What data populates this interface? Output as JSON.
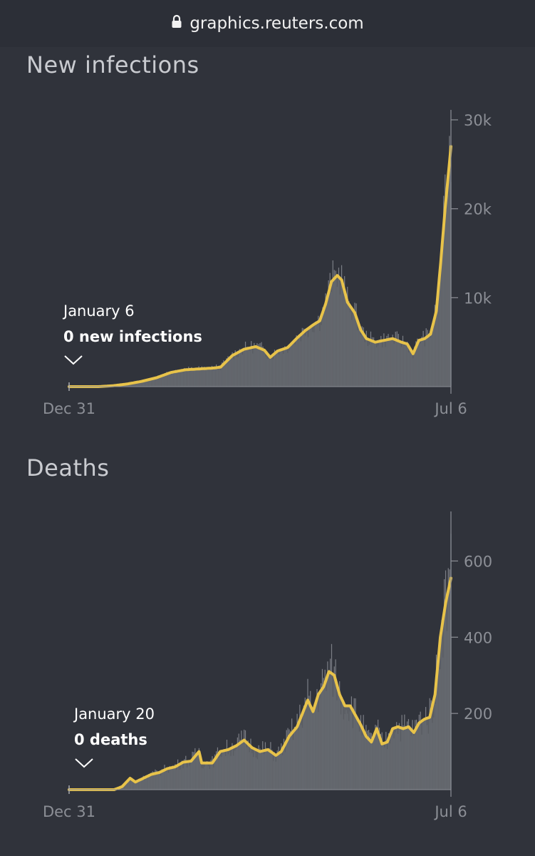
{
  "browser": {
    "url": "graphics.reuters.com",
    "lock_icon": "lock-icon"
  },
  "colors": {
    "background": "#30333b",
    "line": "#e8c34a",
    "area": "#64676d",
    "bars": "#7b7e85",
    "text": "#c9cbd0"
  },
  "chart_data": [
    {
      "type": "area",
      "title": "New infections",
      "x_range": [
        "Dec 31",
        "Jul 6"
      ],
      "x_ticks": [
        "Dec 31",
        "Jul 6"
      ],
      "ylim": [
        0,
        30000
      ],
      "y_ticks": [
        {
          "value": 10000,
          "label": "10k"
        },
        {
          "value": 20000,
          "label": "20k"
        },
        {
          "value": 30000,
          "label": "30k"
        }
      ],
      "annotation": {
        "date": "January 6",
        "value_label": "0 new infections"
      },
      "series": [
        {
          "values": [
            0,
            0,
            0,
            0,
            0,
            0,
            0,
            0,
            0,
            0,
            0,
            0,
            0,
            0,
            0,
            0,
            0,
            0,
            0,
            0,
            0,
            0,
            0,
            0,
            0,
            0,
            0,
            0,
            0,
            0,
            0,
            0,
            0,
            0,
            0,
            0,
            0,
            0,
            0,
            0,
            0,
            0,
            0,
            0,
            0,
            0,
            0,
            0,
            0,
            0,
            0,
            0,
            0,
            0,
            0,
            0,
            0,
            0,
            0,
            0,
            0,
            0,
            0,
            0,
            0,
            0,
            0,
            0,
            0,
            0,
            0,
            0,
            0,
            0,
            0,
            0,
            0,
            0,
            0,
            0,
            0,
            0,
            0,
            0,
            0,
            0,
            0,
            0,
            0,
            0,
            0,
            0,
            0,
            0,
            0,
            0,
            0,
            0,
            0,
            0,
            0,
            0,
            0,
            0,
            0,
            0,
            0,
            0,
            0,
            0,
            0,
            0,
            0,
            0,
            0,
            0,
            0,
            0,
            0,
            0,
            0,
            0,
            0,
            0,
            0,
            0,
            0,
            0,
            0,
            0,
            0,
            0,
            0,
            0,
            0,
            0,
            0,
            0,
            0,
            0,
            0,
            0,
            0,
            0,
            0,
            0,
            0,
            0,
            0,
            0,
            0,
            0,
            0,
            0,
            0,
            0,
            0,
            0,
            0,
            0,
            0,
            0,
            0,
            0,
            0,
            0,
            0,
            0,
            0,
            0,
            0,
            0,
            0,
            0,
            0,
            0,
            0,
            0,
            0,
            0,
            0,
            0,
            0,
            0,
            0,
            0,
            0,
            0,
            0
          ],
          "keypoints": [
            [
              0,
              0
            ],
            [
              20,
              0
            ],
            [
              30,
              100
            ],
            [
              40,
              300
            ],
            [
              50,
              600
            ],
            [
              60,
              1000
            ],
            [
              70,
              1600
            ],
            [
              80,
              1900
            ],
            [
              90,
              2000
            ],
            [
              100,
              2100
            ],
            [
              104,
              2200
            ],
            [
              112,
              3500
            ],
            [
              120,
              4200
            ],
            [
              128,
              4500
            ],
            [
              134,
              4100
            ],
            [
              138,
              3300
            ],
            [
              143,
              4000
            ],
            [
              150,
              4400
            ],
            [
              156,
              5400
            ],
            [
              162,
              6300
            ],
            [
              168,
              7000
            ],
            [
              172,
              7400
            ],
            [
              176,
              9300
            ],
            [
              180,
              11800
            ],
            [
              184,
              12500
            ],
            [
              187,
              12000
            ],
            [
              191,
              9500
            ],
            [
              196,
              8300
            ],
            [
              200,
              6400
            ],
            [
              204,
              5400
            ],
            [
              210,
              5000
            ],
            [
              216,
              5200
            ],
            [
              222,
              5400
            ],
            [
              228,
              5000
            ],
            [
              232,
              4800
            ],
            [
              236,
              3700
            ],
            [
              240,
              5200
            ],
            [
              244,
              5400
            ],
            [
              248,
              5900
            ],
            [
              252,
              8500
            ],
            [
              255,
              14000
            ],
            [
              258,
              20000
            ],
            [
              262,
              27000
            ]
          ],
          "noise": 0.18
        }
      ]
    },
    {
      "type": "area",
      "title": "Deaths",
      "x_range": [
        "Dec 31",
        "Jul 6"
      ],
      "x_ticks": [
        "Dec 31",
        "Jul 6"
      ],
      "ylim": [
        0,
        700
      ],
      "y_ticks": [
        {
          "value": 200,
          "label": "200"
        },
        {
          "value": 400,
          "label": "400"
        },
        {
          "value": 600,
          "label": "600"
        }
      ],
      "annotation": {
        "date": "January 20",
        "value_label": "0 deaths"
      },
      "series": [
        {
          "keypoints": [
            [
              0,
              0
            ],
            [
              34,
              0
            ],
            [
              40,
              8
            ],
            [
              46,
              30
            ],
            [
              50,
              20
            ],
            [
              56,
              30
            ],
            [
              62,
              40
            ],
            [
              68,
              45
            ],
            [
              74,
              55
            ],
            [
              80,
              60
            ],
            [
              86,
              72
            ],
            [
              92,
              75
            ],
            [
              98,
              100
            ],
            [
              100,
              70
            ],
            [
              108,
              70
            ],
            [
              114,
              100
            ],
            [
              120,
              105
            ],
            [
              126,
              115
            ],
            [
              132,
              130
            ],
            [
              138,
              110
            ],
            [
              144,
              100
            ],
            [
              150,
              105
            ],
            [
              156,
              90
            ],
            [
              160,
              100
            ],
            [
              166,
              140
            ],
            [
              172,
              165
            ],
            [
              176,
              200
            ],
            [
              180,
              235
            ],
            [
              184,
              205
            ],
            [
              188,
              250
            ],
            [
              192,
              270
            ],
            [
              196,
              310
            ],
            [
              200,
              300
            ],
            [
              204,
              250
            ],
            [
              208,
              220
            ],
            [
              212,
              220
            ],
            [
              216,
              195
            ],
            [
              220,
              170
            ],
            [
              224,
              140
            ],
            [
              228,
              125
            ],
            [
              232,
              160
            ],
            [
              236,
              120
            ],
            [
              240,
              125
            ],
            [
              244,
              160
            ],
            [
              248,
              165
            ],
            [
              252,
              160
            ],
            [
              256,
              165
            ],
            [
              260,
              150
            ],
            [
              264,
              175
            ],
            [
              268,
              185
            ],
            [
              272,
              190
            ],
            [
              276,
              250
            ],
            [
              280,
              400
            ],
            [
              284,
              490
            ],
            [
              288,
              555
            ]
          ],
          "noise": 0.25
        }
      ]
    }
  ]
}
